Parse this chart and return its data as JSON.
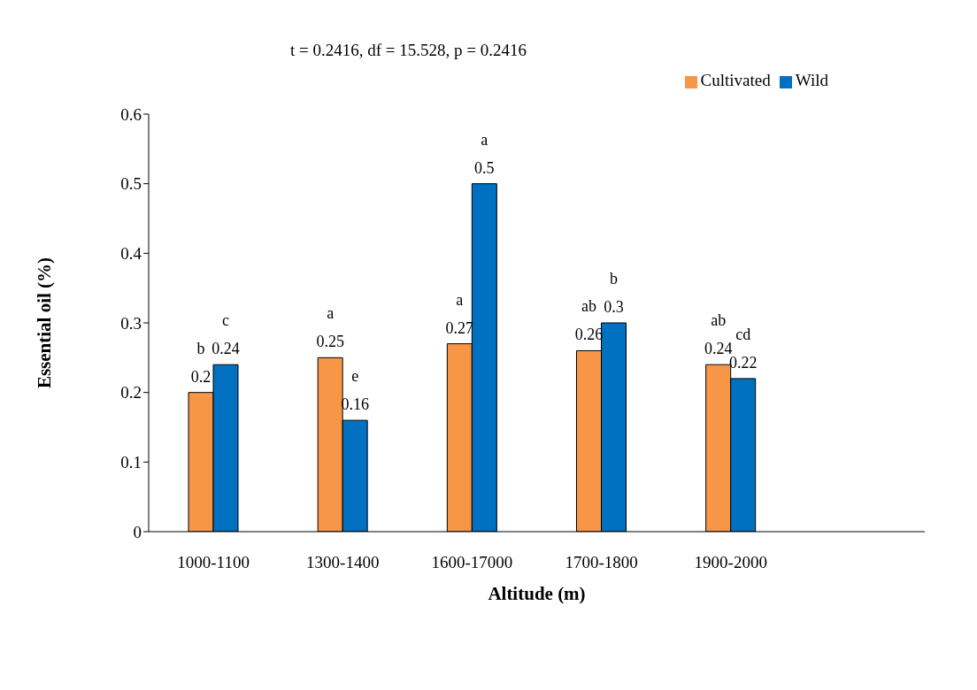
{
  "chart_data": {
    "type": "bar",
    "xlabel": "Altitude (m)",
    "ylabel": "Essential oil (%)",
    "categories": [
      "1000-1100",
      "1300-1400",
      "1600-17000",
      "1700-1800",
      "1900-2000",
      null
    ],
    "series": [
      {
        "name": "Cultivated",
        "color": "#f79646",
        "values": [
          0.2,
          0.25,
          0.27,
          0.26,
          0.24,
          null
        ]
      },
      {
        "name": "Wild",
        "color": "#0070c0",
        "values": [
          0.24,
          0.16,
          0.5,
          0.3,
          0.22,
          null
        ]
      }
    ],
    "ylim": [
      0,
      0.6
    ],
    "yticks": [
      0,
      0.1,
      0.2,
      0.3,
      0.4,
      0.5,
      0.6
    ],
    "grid": false,
    "legend": "top right",
    "data_labels": true,
    "annotations": [
      "t = 0.2416, df = 15.528, p = 0.2416",
      {
        "text": "b",
        "x": "1000-1100",
        "y": 0.2
      },
      {
        "text": "c",
        "x": "1000-1100",
        "y": 0.24
      },
      {
        "text": "a",
        "x": "1300-1400",
        "y": 0.25
      },
      {
        "text": "e",
        "x": "1300-1400",
        "y": 0.16
      },
      {
        "text": "a",
        "x": "1600-17000",
        "y": 0.27
      },
      {
        "text": "a",
        "x": "1600-17000",
        "y": 0.5
      },
      {
        "text": "ab",
        "x": "1700-1800",
        "y": 0.26
      },
      {
        "text": "b",
        "x": "1700-1800",
        "y": 0.3
      },
      {
        "text": "ab",
        "x": "1900-2000",
        "y": 0.24
      },
      {
        "text": "cd",
        "x": "1900-2000",
        "y": 0.22
      }
    ]
  }
}
